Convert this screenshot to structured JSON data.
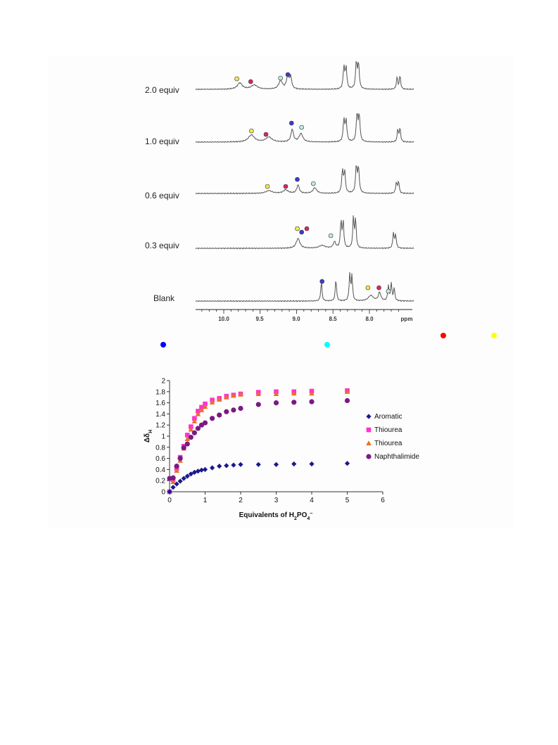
{
  "nmr_spectra": {
    "traces": [
      {
        "label": "2.0 equiv"
      },
      {
        "label": "1.0 equiv"
      },
      {
        "label": "0.6 equiv"
      },
      {
        "label": "0.3 equiv"
      },
      {
        "label": "Blank"
      }
    ],
    "axis": {
      "ticks": [
        "10.0",
        "9.5",
        "9.0",
        "8.5",
        "8.0"
      ],
      "unit": "ppm"
    },
    "marker_colors": {
      "aromatic": "#3b3bd0",
      "thiourea_1": "#e0245e",
      "thiourea_2": "#f2ea4a",
      "naphthalimide": "#bfe8e8"
    }
  },
  "color_key": [
    {
      "name": "blue-dot",
      "color": "#0000ff"
    },
    {
      "name": "cyan-dot",
      "color": "#00ffff"
    },
    {
      "name": "red-dot",
      "color": "#ff0000"
    },
    {
      "name": "yellow-dot",
      "color": "#ffff00"
    }
  ],
  "chart_data": {
    "type": "scatter",
    "title": "",
    "xlabel_main": "Equivalents of H",
    "xlabel_sub1": "2",
    "xlabel_mid": "PO",
    "xlabel_sub2": "4",
    "xlabel_sup": "−",
    "ylabel_main": "Δδ",
    "ylabel_sub": "H",
    "xlim": [
      0,
      6
    ],
    "ylim": [
      0,
      2
    ],
    "xticks": [
      "0",
      "1",
      "2",
      "3",
      "4",
      "5",
      "6"
    ],
    "yticks": [
      "0",
      "0.2",
      "0.4",
      "0.6",
      "0.8",
      "1",
      "1.2",
      "1.4",
      "1.6",
      "1.8",
      "2"
    ],
    "legend_position": "right",
    "series": [
      {
        "name": "Aromatic",
        "marker": "diamond",
        "color": "#1a1a8c",
        "x": [
          0,
          0.1,
          0.2,
          0.3,
          0.4,
          0.5,
          0.6,
          0.7,
          0.8,
          0.9,
          1.0,
          1.2,
          1.4,
          1.6,
          1.8,
          2.0,
          2.5,
          3.0,
          3.5,
          4.0,
          5.0
        ],
        "y": [
          0,
          0.08,
          0.14,
          0.19,
          0.24,
          0.28,
          0.32,
          0.35,
          0.37,
          0.39,
          0.4,
          0.43,
          0.46,
          0.47,
          0.48,
          0.49,
          0.49,
          0.49,
          0.5,
          0.5,
          0.51
        ]
      },
      {
        "name": "Thiourea",
        "marker": "square",
        "color": "#ff33cc",
        "x": [
          0,
          0.1,
          0.2,
          0.3,
          0.4,
          0.5,
          0.6,
          0.7,
          0.8,
          0.9,
          1.0,
          1.2,
          1.4,
          1.6,
          1.8,
          2.0,
          2.5,
          3.0,
          3.5,
          4.0,
          5.0
        ],
        "y": [
          0,
          0.22,
          0.42,
          0.62,
          0.82,
          1.02,
          1.17,
          1.32,
          1.45,
          1.52,
          1.58,
          1.65,
          1.68,
          1.72,
          1.74,
          1.76,
          1.79,
          1.8,
          1.8,
          1.81,
          1.82
        ]
      },
      {
        "name": "Thiourea",
        "marker": "triangle",
        "color": "#e8702a",
        "x": [
          0,
          0.1,
          0.2,
          0.3,
          0.4,
          0.5,
          0.6,
          0.7,
          0.8,
          0.9,
          1.0,
          1.2,
          1.4,
          1.6,
          1.8,
          2.0,
          2.5,
          3.0,
          3.5,
          4.0,
          5.0
        ],
        "y": [
          0,
          0.18,
          0.38,
          0.56,
          0.78,
          0.95,
          1.12,
          1.27,
          1.4,
          1.47,
          1.53,
          1.61,
          1.66,
          1.7,
          1.73,
          1.75,
          1.76,
          1.76,
          1.77,
          1.77,
          1.8
        ]
      },
      {
        "name": "Naphthalimide",
        "marker": "circle",
        "color": "#7a1a82",
        "x": [
          0,
          0.1,
          0.2,
          0.3,
          0.4,
          0.5,
          0.6,
          0.7,
          0.8,
          0.9,
          1.0,
          1.2,
          1.4,
          1.6,
          1.8,
          2.0,
          2.5,
          3.0,
          3.5,
          4.0,
          5.0
        ],
        "y": [
          0.24,
          0.25,
          0.46,
          0.6,
          0.79,
          0.86,
          0.98,
          1.06,
          1.14,
          1.2,
          1.24,
          1.32,
          1.38,
          1.44,
          1.47,
          1.5,
          1.57,
          1.6,
          1.61,
          1.62,
          1.64
        ]
      }
    ]
  }
}
